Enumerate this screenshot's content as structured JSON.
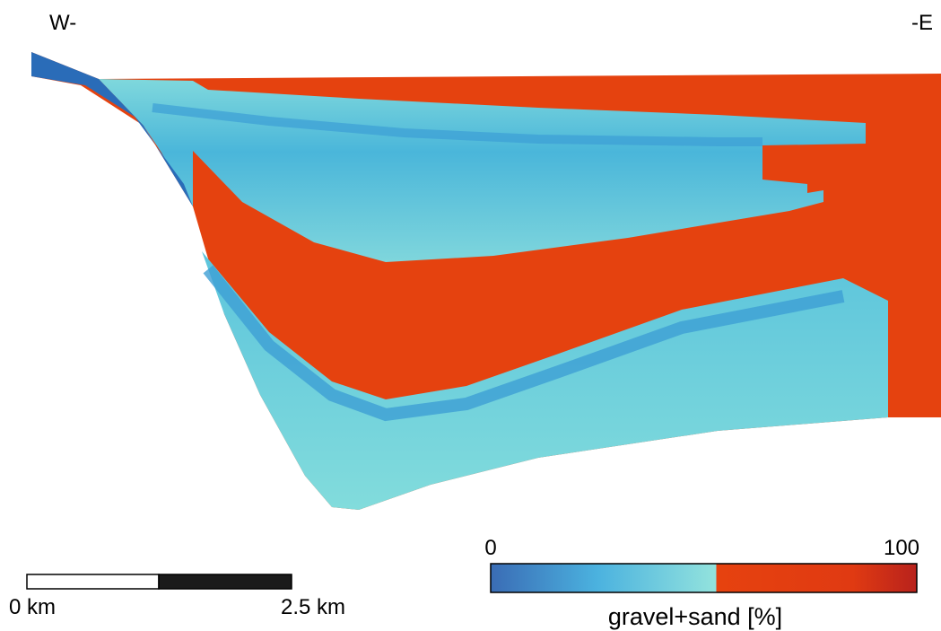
{
  "labels": {
    "west": "W-",
    "east": "-E"
  },
  "scale_bar": {
    "start_label": "0 km",
    "end_label": "2.5 km"
  },
  "colorbar": {
    "min_label": "0",
    "max_label": "100",
    "title": "gravel+sand [%]"
  }
}
